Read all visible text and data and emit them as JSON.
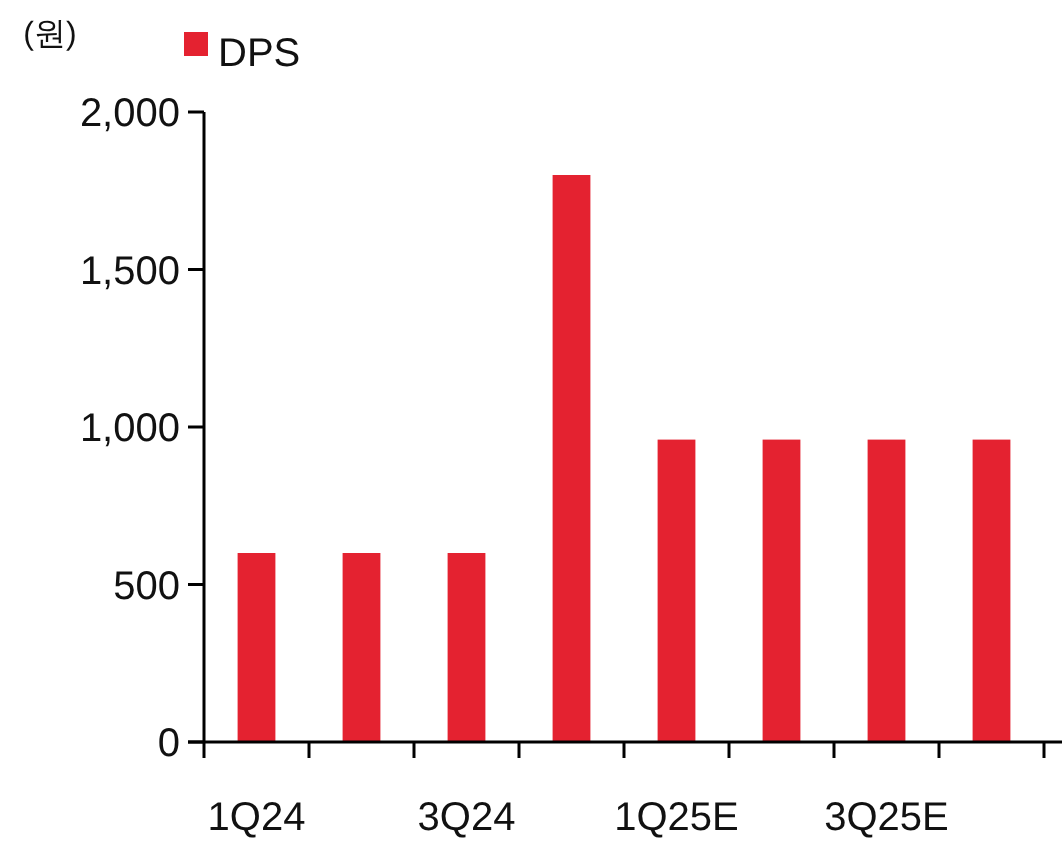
{
  "chart_data": {
    "type": "bar",
    "ylabel": "(원)",
    "categories": [
      "1Q24",
      null,
      "3Q24",
      null,
      "1Q25E",
      null,
      "3Q25E",
      null
    ],
    "series": [
      {
        "name": "DPS",
        "color": "#e42230",
        "values": [
          600,
          600,
          600,
          1800,
          960,
          960,
          960,
          960
        ]
      }
    ],
    "ylim": [
      0,
      2000
    ],
    "yticks": [
      0,
      {
        "value": 500,
        "label": "500"
      },
      {
        "value": 1000,
        "label": "1,000"
      },
      {
        "value": 1500,
        "label": "1,500"
      },
      {
        "value": 2000,
        "label": "2,000"
      }
    ],
    "grid": false,
    "legend": "top left"
  }
}
